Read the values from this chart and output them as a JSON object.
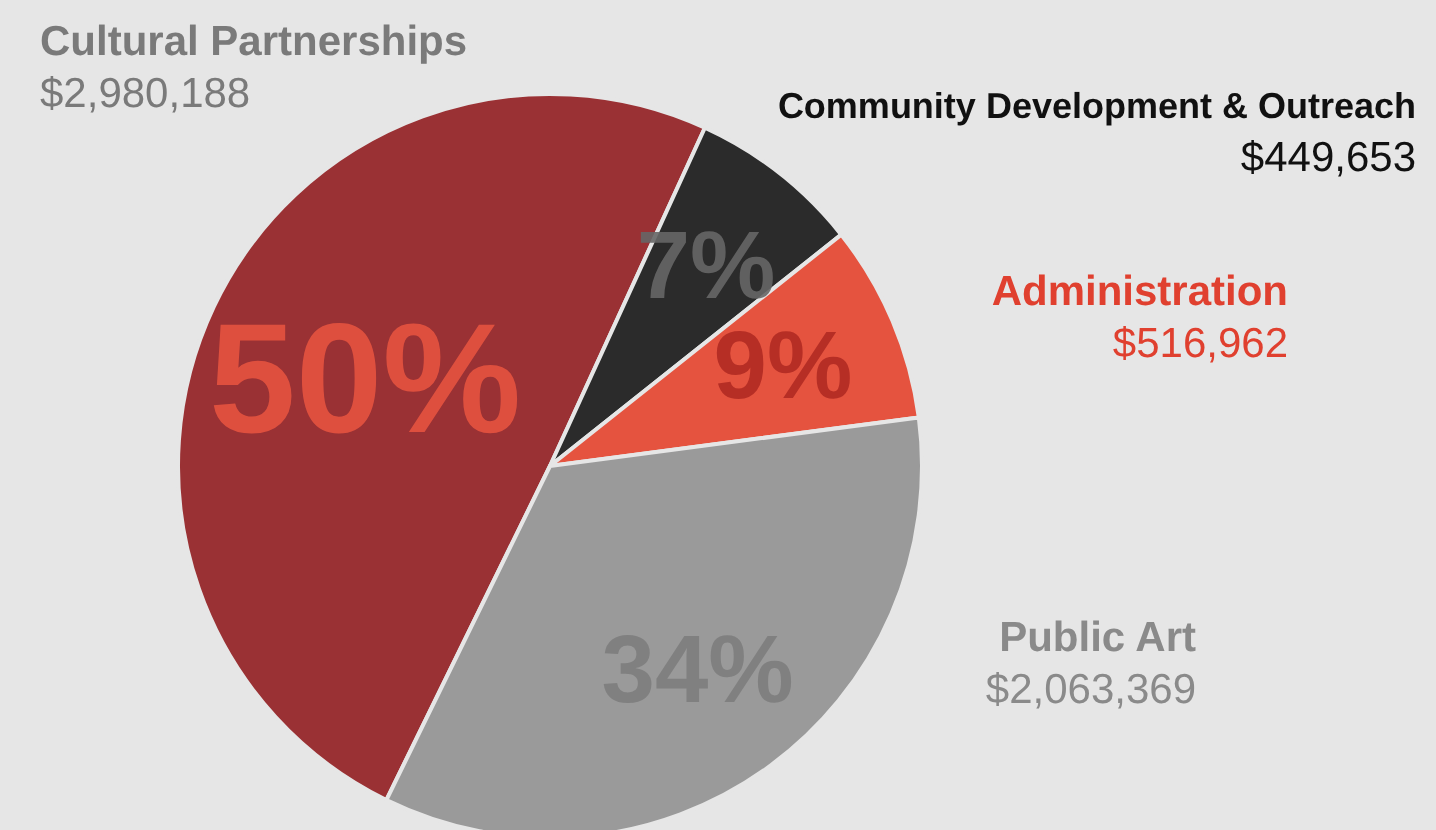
{
  "chart_data": {
    "type": "pie",
    "categories": [
      "Cultural Partnerships",
      "Community Development & Outreach",
      "Administration",
      "Public Art"
    ],
    "values": [
      2980188,
      449653,
      516962,
      2063369
    ],
    "value_labels": [
      "$2,980,188",
      "$449,653",
      "$516,962",
      "$2,063,369"
    ],
    "colors": [
      "#9a3134",
      "#2b2b2b",
      "#e5533f",
      "#9a9a9a"
    ],
    "annotations": [
      "50%",
      "7%",
      "9%",
      "34%"
    ],
    "legend": false
  }
}
